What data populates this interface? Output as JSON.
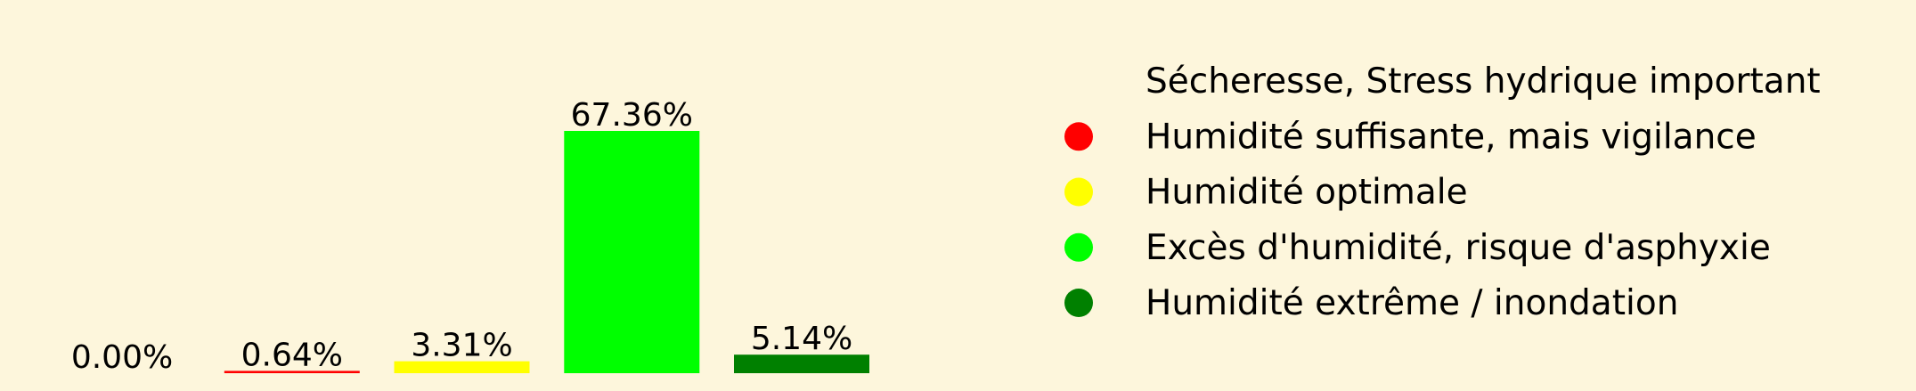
{
  "background": "#fdf6dc",
  "chart_data": {
    "type": "bar",
    "categories": [
      "Sécheresse, Stress hydrique important",
      "Humidité suffisante, mais vigilance",
      "Humidité optimale",
      "Excès d'humidité, risque d'asphyxie",
      "Humidité extrême / inondation"
    ],
    "values": [
      0.0,
      0.64,
      3.31,
      67.36,
      5.14
    ],
    "data_labels": [
      "0.00%",
      "0.64%",
      "3.31%",
      "67.36%",
      "5.14%"
    ],
    "colors": [
      "#fdf6dc",
      "#ff0000",
      "#ffff00",
      "#00ff00",
      "#008000"
    ],
    "ylim": [
      0,
      67.36
    ],
    "grid": false,
    "legend": {
      "placement": "right",
      "entries": [
        {
          "label": "Sécheresse, Stress hydrique important",
          "color": "#fdf6dc"
        },
        {
          "label": "Humidité suffisante, mais vigilance",
          "color": "#ff0000"
        },
        {
          "label": "Humidité optimale",
          "color": "#ffff00"
        },
        {
          "label": "Excès d'humidité, risque d'asphyxie",
          "color": "#00ff00"
        },
        {
          "label": "Humidité extrême / inondation",
          "color": "#008000"
        }
      ]
    }
  }
}
